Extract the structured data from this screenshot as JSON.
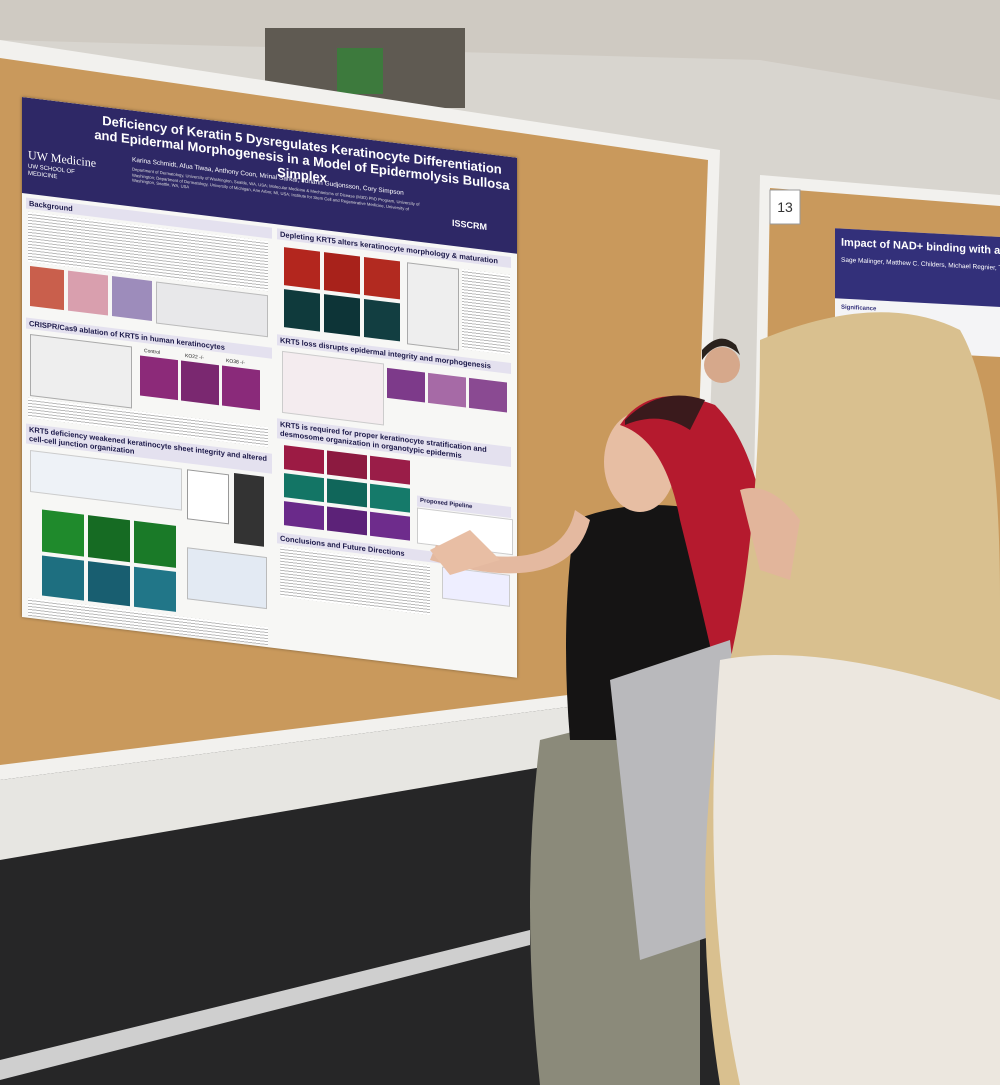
{
  "poster": {
    "title": "Deficiency of Keratin 5 Dysregulates Keratinocyte Differentiation and Epidermal Morphogenesis in a Model of Epidermolysis Bullosa Simplex",
    "logo": "UW Medicine",
    "logo_sub": "UW SCHOOL OF MEDICINE",
    "authors": "Karina Schmidt, Afua Tiwaa, Anthony Coon, Mrinal Sarkar, Johann Gudjonsson, Cory Simpson",
    "affiliations": "Department of Dermatology, University of Washington, Seattle, WA, USA; Molecular Medicine & Mechanisms of Disease (M3D) PhD Program, University of Washington; Department of Dermatology, University of Michigan, Ann Arbor, MI, USA; Institute for Stem Cell and Regenerative Medicine, University of Washington, Seattle, WA, USA",
    "society": "ISSCRM",
    "sections": [
      "Background",
      "CRISPR/Cas9 ablation of KRT5 in human keratinocytes",
      "KRT5 deficiency weakened keratinocyte sheet integrity and altered cell-cell junction organization",
      "Depleting KRT5 alters keratinocyte morphology & maturation",
      "KRT5 loss disrupts epidermal integrity and morphogenesis",
      "KRT5 is required for proper keratinocyte stratification and desmosome organization in organotypic epidermis",
      "Conclusions and Future Directions"
    ],
    "panel_labels": [
      "Control",
      "KO22 -/-",
      "KO38 -/-"
    ],
    "pipeline": "Proposed Pipeline"
  },
  "board_number": "13",
  "second_poster": {
    "title": "Impact of NAD+ binding with a subunit of hum",
    "authors": "Sage Malinger, Matthew C. Childers, Michael Regnier, Th",
    "section": "Significance"
  }
}
